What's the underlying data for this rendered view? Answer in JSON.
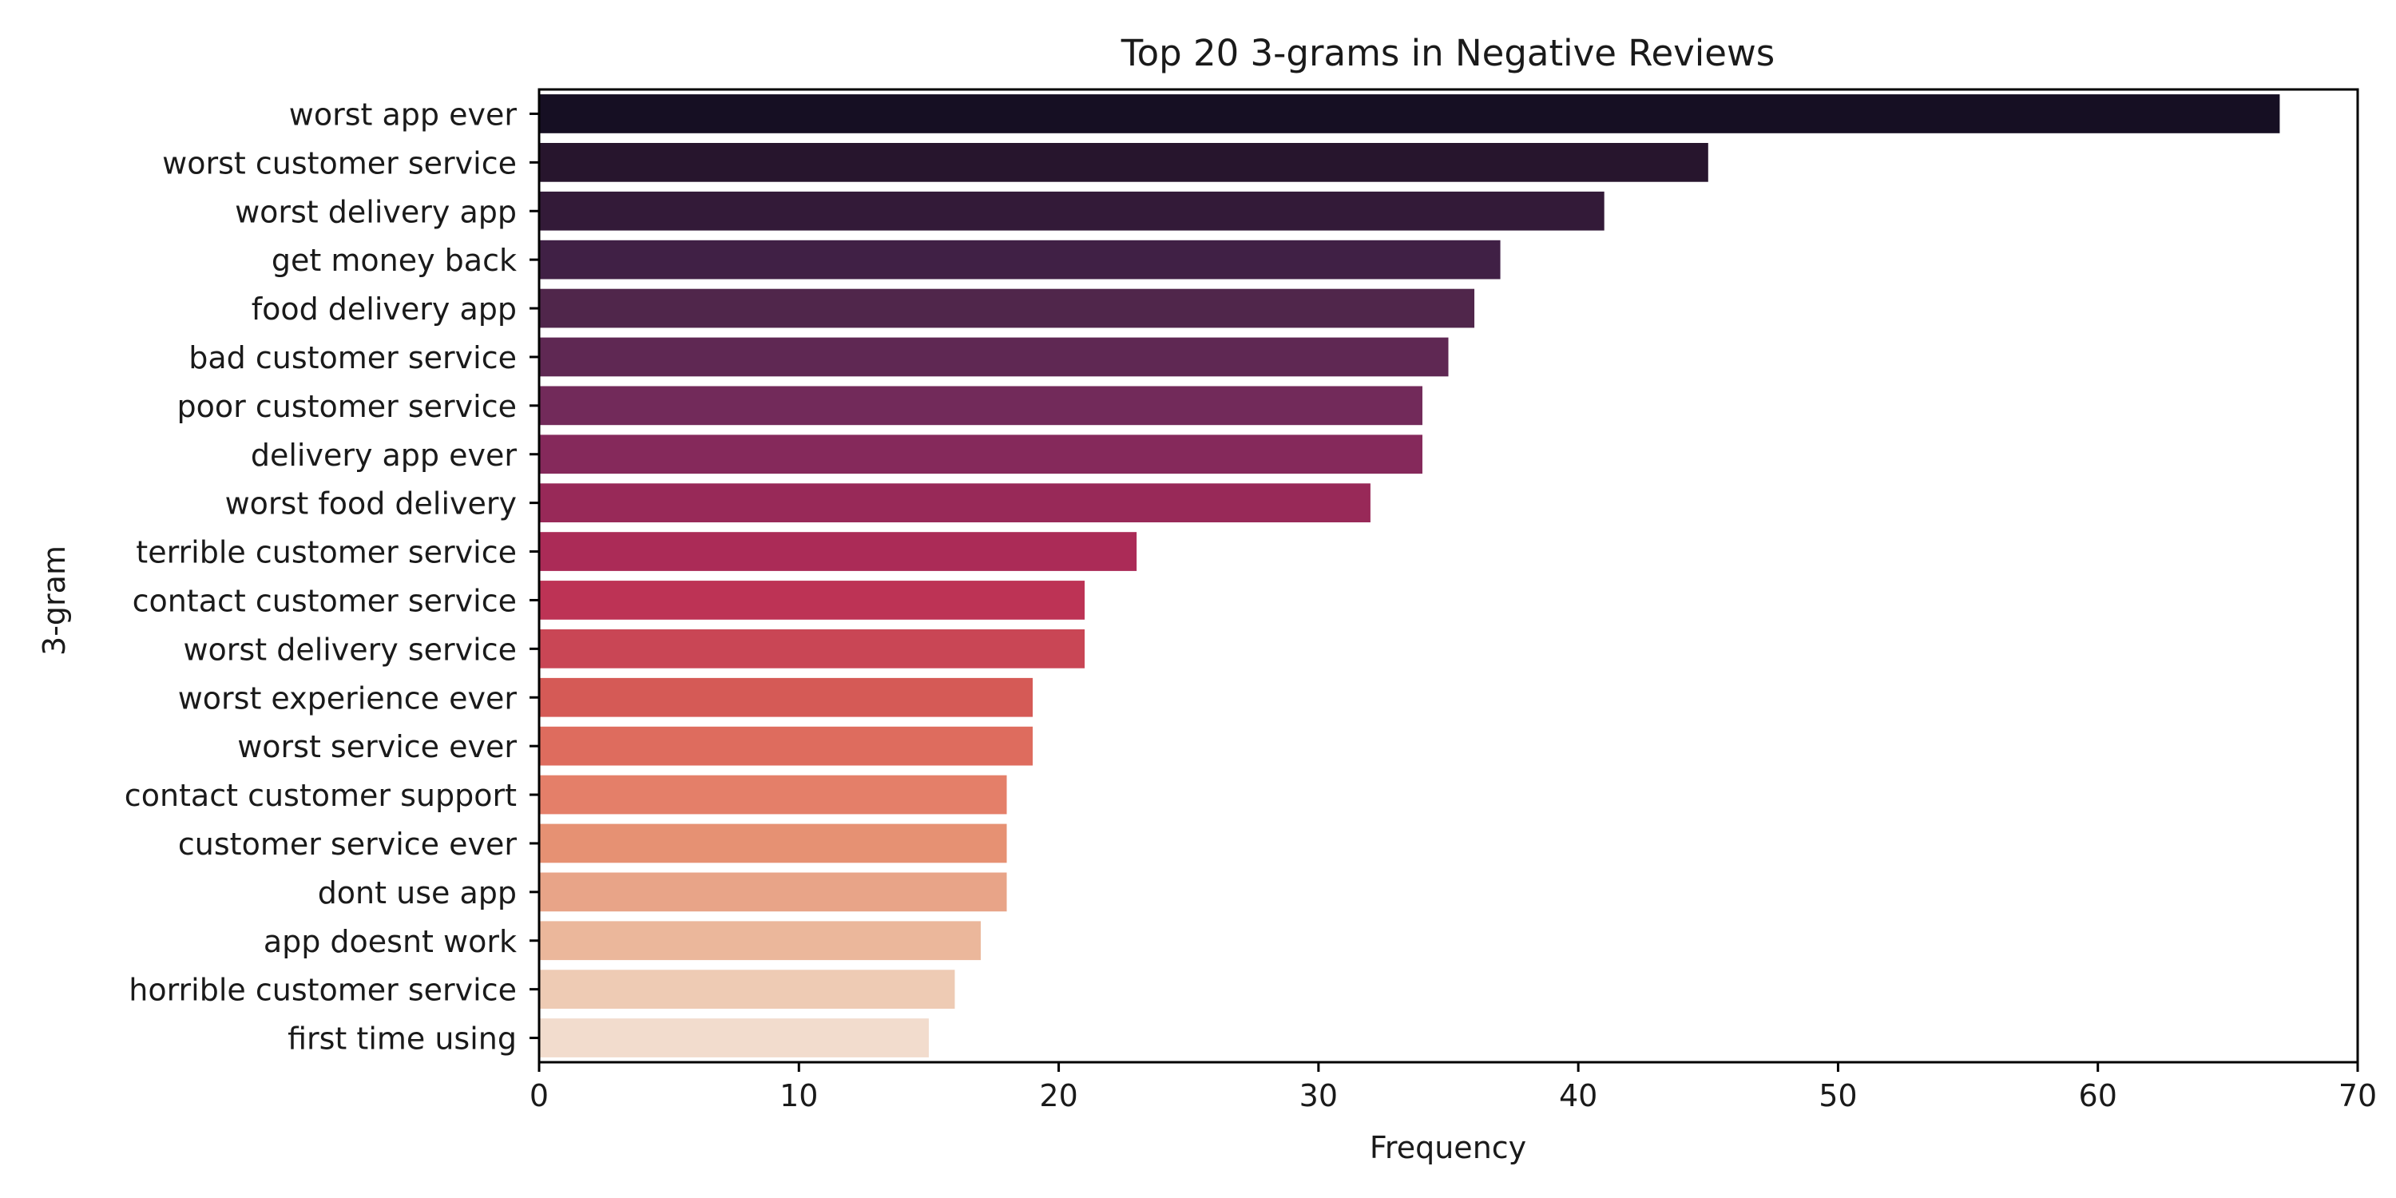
{
  "chart_data": {
    "type": "bar",
    "orientation": "horizontal",
    "title": "Top 20 3-grams in Negative Reviews",
    "xlabel": "Frequency",
    "ylabel": "3-gram",
    "xlim": [
      0,
      70
    ],
    "xticks": [
      "0",
      "10",
      "20",
      "30",
      "40",
      "50",
      "60",
      "70"
    ],
    "grid": false,
    "palette": "rocket",
    "categories": [
      "worst app ever",
      "worst customer service",
      "worst delivery app",
      "get money back",
      "food delivery app",
      "bad customer service",
      "poor customer service",
      "delivery app ever",
      "worst food delivery",
      "terrible customer service",
      "contact customer service",
      "worst delivery service",
      "worst experience ever",
      "worst service ever",
      "contact customer support",
      "customer service ever",
      "dont use app",
      "app doesnt work",
      "horrible customer service",
      "first time using"
    ],
    "values": [
      67,
      45,
      41,
      37,
      36,
      35,
      34,
      34,
      32,
      23,
      21,
      21,
      19,
      19,
      18,
      18,
      18,
      17,
      16,
      15
    ],
    "colors": [
      "#160f23",
      "#27152d",
      "#331a38",
      "#402045",
      "#50264b",
      "#5f2853",
      "#722a5a",
      "#85295b",
      "#982958",
      "#ab2b57",
      "#bd3355",
      "#c94655",
      "#d55a56",
      "#de6c5e",
      "#e47f69",
      "#e69173",
      "#e8a488",
      "#ebb79b",
      "#eecbb4",
      "#f2dccd"
    ]
  }
}
